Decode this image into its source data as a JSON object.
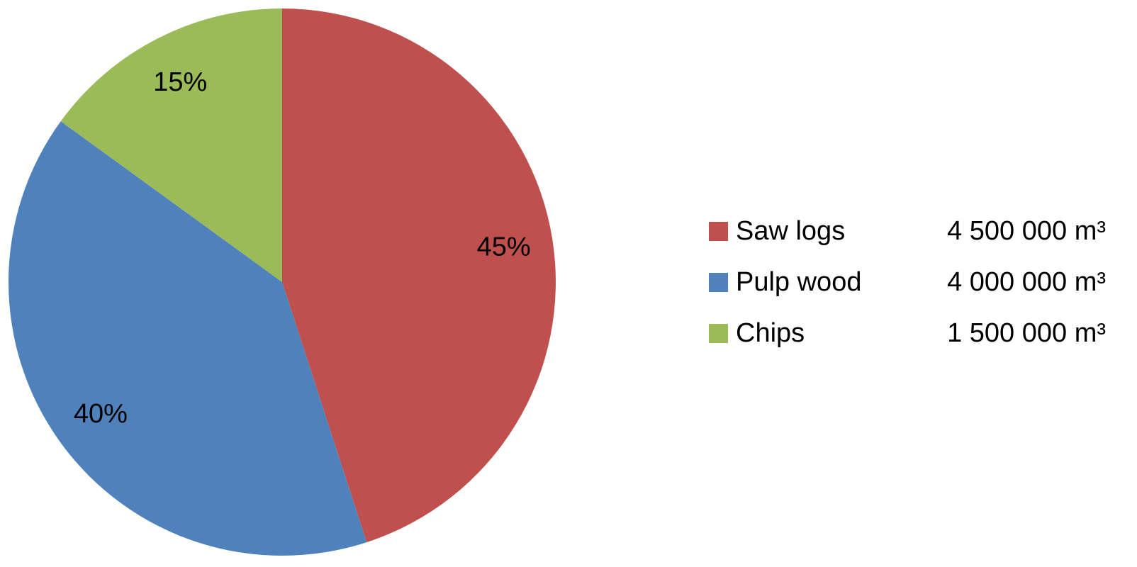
{
  "chart_data": {
    "type": "pie",
    "title": "",
    "start_angle_deg": 0,
    "direction": "clockwise",
    "slices": [
      {
        "name": "Saw logs",
        "value": 45,
        "label": "45%",
        "volume": "4 500 000 m³",
        "color": "#c0504d"
      },
      {
        "name": "Pulp wood",
        "value": 40,
        "label": "40%",
        "volume": "4 000 000 m³",
        "color": "#4f81bd"
      },
      {
        "name": "Chips",
        "value": 15,
        "label": "15%",
        "volume": "1 500 000 m³",
        "color": "#9bbb59"
      }
    ],
    "legend_position": "right"
  }
}
